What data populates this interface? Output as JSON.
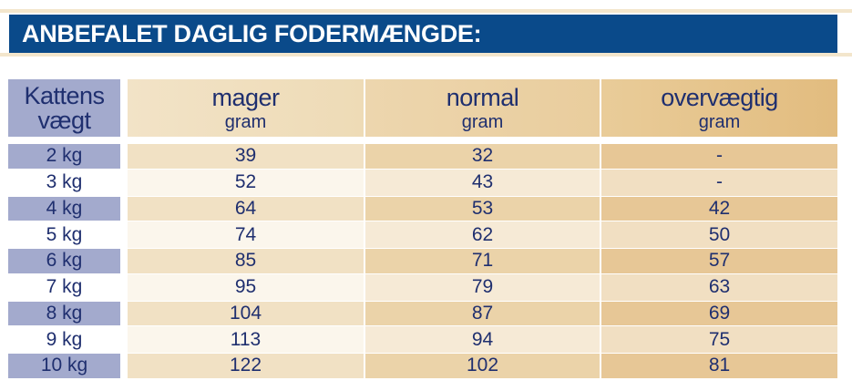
{
  "title": "ANBEFALET DAGLIG FODERMÆNGDE:",
  "headers": {
    "weight": [
      "Kattens",
      "vægt"
    ],
    "columns": [
      {
        "label": "mager",
        "unit": "gram"
      },
      {
        "label": "normal",
        "unit": "gram"
      },
      {
        "label": "overvægtig",
        "unit": "gram"
      }
    ]
  },
  "rows": [
    {
      "weight": "2 kg",
      "mager": "39",
      "normal": "32",
      "overvaegtig": "-"
    },
    {
      "weight": "3 kg",
      "mager": "52",
      "normal": "43",
      "overvaegtig": "-"
    },
    {
      "weight": "4 kg",
      "mager": "64",
      "normal": "53",
      "overvaegtig": "42"
    },
    {
      "weight": "5 kg",
      "mager": "74",
      "normal": "62",
      "overvaegtig": "50"
    },
    {
      "weight": "6 kg",
      "mager": "85",
      "normal": "71",
      "overvaegtig": "57"
    },
    {
      "weight": "7 kg",
      "mager": "95",
      "normal": "79",
      "overvaegtig": "63"
    },
    {
      "weight": "8 kg",
      "mager": "104",
      "normal": "87",
      "overvaegtig": "69"
    },
    {
      "weight": "9 kg",
      "mager": "113",
      "normal": "94",
      "overvaegtig": "75"
    },
    {
      "weight": "10 kg",
      "mager": "122",
      "normal": "102",
      "overvaegtig": "81"
    }
  ],
  "colors": {
    "title_band": "#0a4a8a",
    "text": "#1f2f6f",
    "weight_col_shaded": "#a3aacd",
    "mager_shaded": "#f1e1c4",
    "normal_shaded": "#ebd3a9",
    "overvaegtig_shaded": "#e7c796",
    "mager_light": "#fbf6ec",
    "normal_light": "#f6ead6",
    "overvaegtig_light": "#f1dfc2"
  }
}
